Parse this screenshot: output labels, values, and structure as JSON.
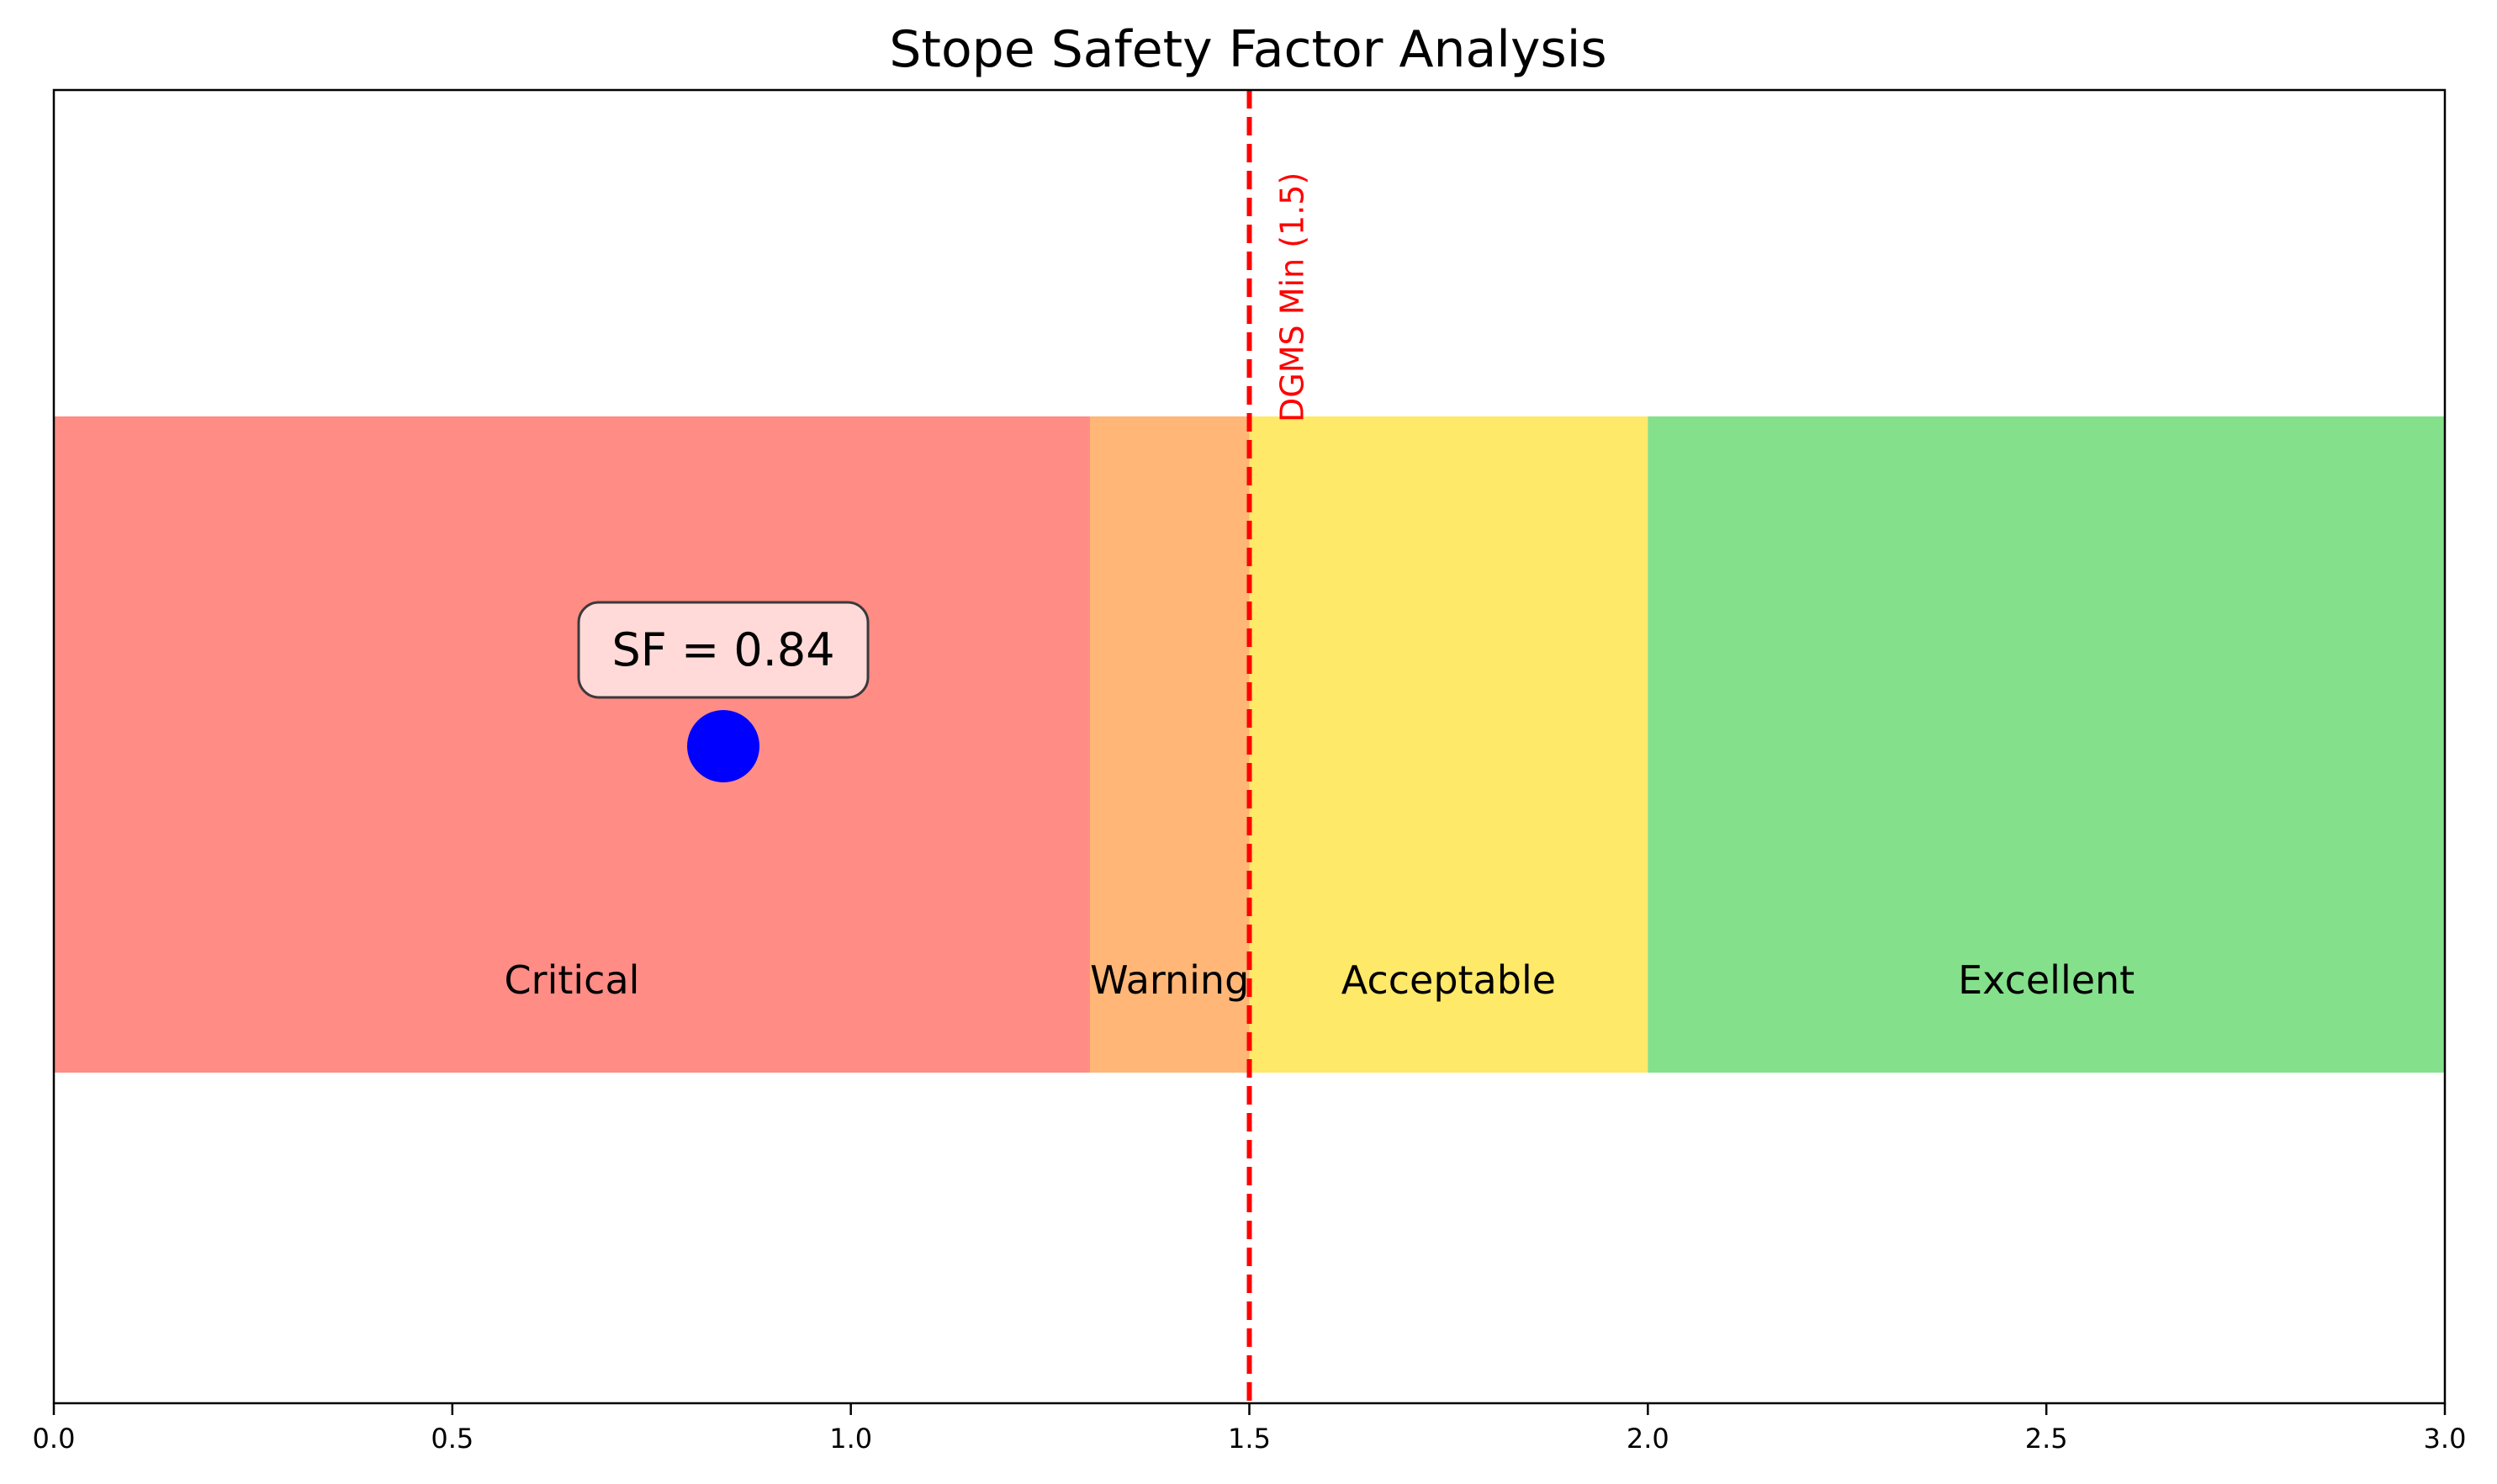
{
  "chart_data": {
    "type": "bar",
    "title": "Stope Safety Factor Analysis",
    "xlabel": "",
    "ylabel": "",
    "xlim": [
      0.0,
      3.0
    ],
    "x_ticks": [
      "0.0",
      "0.5",
      "1.0",
      "1.5",
      "2.0",
      "2.5",
      "3.0"
    ],
    "x_tick_values": [
      0.0,
      0.5,
      1.0,
      1.5,
      2.0,
      2.5,
      3.0
    ],
    "y_ticks_visible": false,
    "grid": false,
    "zones": [
      {
        "label": "Critical",
        "start": 0.0,
        "end": 1.3,
        "color": "#ff8c85"
      },
      {
        "label": "Warning",
        "start": 1.3,
        "end": 1.5,
        "color": "#ffb676"
      },
      {
        "label": "Acceptable",
        "start": 1.5,
        "end": 2.0,
        "color": "#ffe968"
      },
      {
        "label": "Excellent",
        "start": 2.0,
        "end": 3.0,
        "color": "#84e08b"
      }
    ],
    "threshold": {
      "value": 1.5,
      "label": "DGMS Min (1.5)",
      "color": "#ff0000",
      "style": "dashed"
    },
    "marker": {
      "value": 0.84,
      "label": "SF = 0.84",
      "color": "#0000ff",
      "label_box_color": "#ffdad8"
    }
  }
}
